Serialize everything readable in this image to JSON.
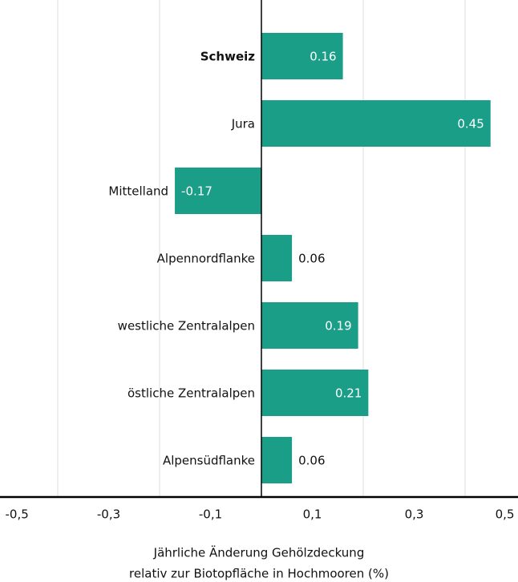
{
  "chart_data": {
    "type": "bar",
    "orientation": "horizontal",
    "categories": [
      "Schweiz",
      "Jura",
      "Mittelland",
      "Alpennordflanke",
      "westliche Zentralalpen",
      "östliche Zentralalpen",
      "Alpensüdflanke"
    ],
    "values": [
      0.16,
      0.45,
      -0.17,
      0.06,
      0.19,
      0.21,
      0.06
    ],
    "color": "#1a9e87",
    "xlim": [
      -0.5,
      0.5
    ],
    "xticks": [
      {
        "value": -0.5,
        "label": "-0,5"
      },
      {
        "value": -0.3,
        "label": "-0,3"
      },
      {
        "value": -0.1,
        "label": "-0,1"
      },
      {
        "value": 0.1,
        "label": "0,1"
      },
      {
        "value": 0.3,
        "label": "0,3"
      },
      {
        "value": 0.5,
        "label": "0,5"
      }
    ],
    "xgrid": [
      -0.4,
      -0.2,
      0.2,
      0.4
    ],
    "xlabel": [
      "Jährliche Änderung Gehölzdeckung",
      "relativ zur Biotopfläche in Hochmooren (%)"
    ]
  }
}
